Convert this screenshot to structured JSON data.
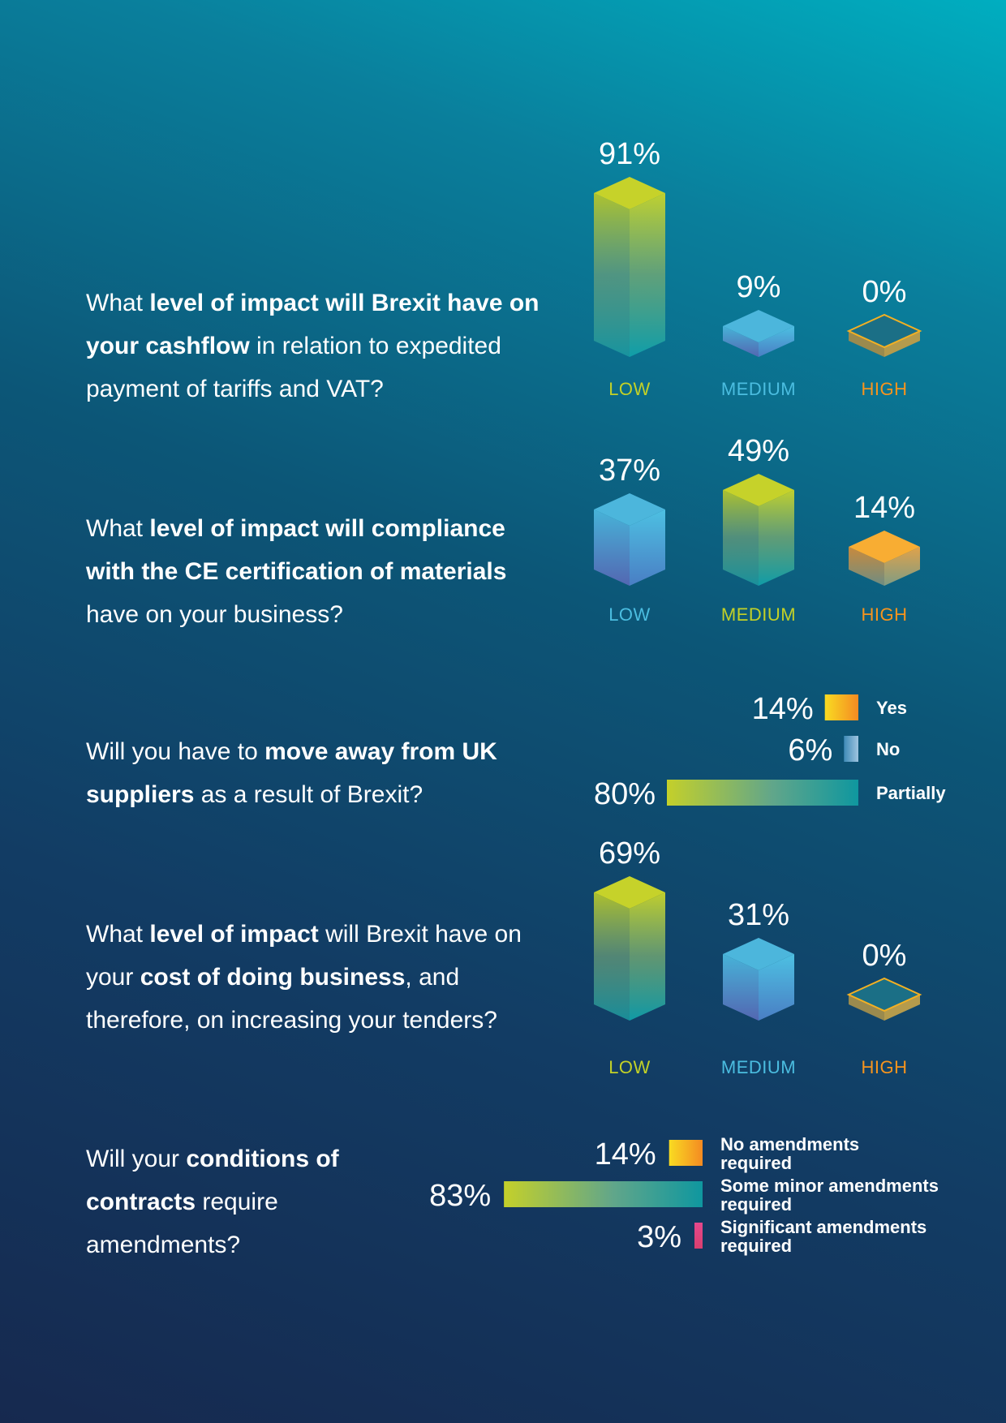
{
  "colors": {
    "low": "#c3d127",
    "medium": "#4bbde0",
    "high": "#f7941d",
    "teal": "#0e9aa7",
    "blue": "#4a5fb0",
    "pink": "#e0457b",
    "orange": "#f7a21b",
    "yellow": "#f9e21d"
  },
  "questions": [
    {
      "pre": "What ",
      "bold": "level of impact will Brexit have on your cashflow",
      "post": " in relation to expedited payment of tariffs and VAT?"
    },
    {
      "pre": "What ",
      "bold": "level of impact will compliance with the CE certification of materials",
      "post": " have on your business?"
    },
    {
      "pre": "Will you have to ",
      "bold": "move away from UK suppliers",
      "post": " as a result of Brexit?"
    },
    {
      "pre": "What ",
      "bold": "level of impact",
      "mid": " will Brexit have on your ",
      "bold2": "cost of doing business",
      "post": ", and therefore, on increasing your tenders?"
    },
    {
      "pre": "Will your ",
      "bold": "conditions of contracts",
      "post": " require amendments?"
    }
  ],
  "chart_data": [
    {
      "type": "bar",
      "categories": [
        "LOW",
        "MEDIUM",
        "HIGH"
      ],
      "values": [
        91,
        9,
        0
      ],
      "labels": [
        "91%",
        "9%",
        "0%"
      ],
      "ylim": [
        0,
        100
      ]
    },
    {
      "type": "bar",
      "categories": [
        "LOW",
        "MEDIUM",
        "HIGH"
      ],
      "values": [
        37,
        49,
        14
      ],
      "labels": [
        "37%",
        "49%",
        "14%"
      ],
      "ylim": [
        0,
        100
      ]
    },
    {
      "type": "bar",
      "orientation": "horizontal",
      "categories": [
        "Yes",
        "No",
        "Partially"
      ],
      "values": [
        14,
        6,
        80
      ],
      "labels": [
        "14%",
        "6%",
        "80%"
      ]
    },
    {
      "type": "bar",
      "categories": [
        "LOW",
        "MEDIUM",
        "HIGH"
      ],
      "values": [
        69,
        31,
        0
      ],
      "labels": [
        "69%",
        "31%",
        "0%"
      ],
      "ylim": [
        0,
        100
      ]
    },
    {
      "type": "bar",
      "orientation": "horizontal",
      "categories": [
        "No amendments required",
        "Some minor amendments required",
        "Significant amendments required"
      ],
      "values": [
        14,
        83,
        3
      ],
      "labels": [
        "14%",
        "83%",
        "3%"
      ]
    }
  ]
}
